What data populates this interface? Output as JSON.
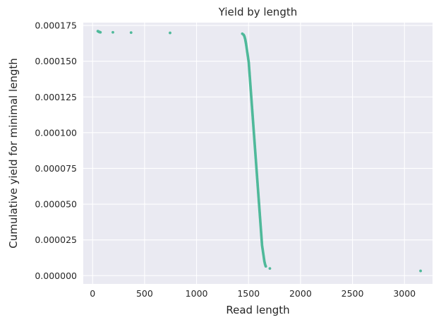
{
  "chart_data": {
    "type": "scatter",
    "title": "Yield by length",
    "xlabel": "Read length",
    "ylabel": "Cumulative yield for minimal length",
    "xlim": [
      -90,
      3270
    ],
    "ylim": [
      -5.8e-06,
      0.000177
    ],
    "xticks": [
      0,
      500,
      1000,
      1500,
      2000,
      2500,
      3000
    ],
    "xtick_labels": [
      "0",
      "500",
      "1000",
      "1500",
      "2000",
      "2500",
      "3000"
    ],
    "yticks": [
      0,
      2.5e-05,
      5e-05,
      7.5e-05,
      0.0001,
      0.000125,
      0.00015,
      0.000175
    ],
    "ytick_labels": [
      "0.000000",
      "0.000025",
      "0.000050",
      "0.000075",
      "0.000100",
      "0.000125",
      "0.000150",
      "0.000175"
    ],
    "grid": true,
    "colors": {
      "plot_background": "#eaeaf2",
      "grid": "#ffffff",
      "point": "#4fb99a"
    },
    "series": [
      {
        "points": [
          [
            50,
            0.000171
          ],
          [
            55,
            0.0001708
          ],
          [
            60,
            0.0001706
          ],
          [
            65,
            0.0001704
          ],
          [
            70,
            0.0001703
          ],
          [
            75,
            0.0001702
          ],
          [
            195,
            0.0001702
          ],
          [
            370,
            0.00017
          ],
          [
            745,
            0.0001698
          ],
          [
            1440,
            0.0001692
          ],
          [
            1452,
            0.0001685
          ],
          [
            1458,
            0.0001678
          ],
          [
            1462,
            0.000167
          ],
          [
            1465,
            0.0001662
          ],
          [
            1468,
            0.0001654
          ],
          [
            1470,
            0.0001646
          ],
          [
            1472,
            0.0001638
          ],
          [
            1474,
            0.000163
          ],
          [
            1476,
            0.0001622
          ],
          [
            1478,
            0.0001612
          ],
          [
            1480,
            0.0001602
          ],
          [
            1482,
            0.0001592
          ],
          [
            1484,
            0.0001582
          ],
          [
            1486,
            0.0001572
          ],
          [
            1488,
            0.0001562
          ],
          [
            1490,
            0.0001552
          ],
          [
            1492,
            0.0001542
          ],
          [
            1494,
            0.0001532
          ],
          [
            1496,
            0.0001522
          ],
          [
            1498,
            0.0001512
          ],
          [
            1500,
            0.0001502
          ],
          [
            1502,
            0.0001492
          ],
          [
            1503,
            0.0001482
          ],
          [
            1504,
            0.0001472
          ],
          [
            1505,
            0.0001462
          ],
          [
            1506,
            0.0001452
          ],
          [
            1507,
            0.0001442
          ],
          [
            1508,
            0.0001432
          ],
          [
            1509,
            0.0001422
          ],
          [
            1510,
            0.0001412
          ],
          [
            1511,
            0.0001402
          ],
          [
            1512,
            0.0001392
          ],
          [
            1513,
            0.0001382
          ],
          [
            1514,
            0.0001372
          ],
          [
            1515,
            0.0001362
          ],
          [
            1516,
            0.0001352
          ],
          [
            1517,
            0.0001342
          ],
          [
            1518,
            0.0001332
          ],
          [
            1519,
            0.0001322
          ],
          [
            1520,
            0.0001312
          ],
          [
            1521,
            0.0001302
          ],
          [
            1522,
            0.0001292
          ],
          [
            1523,
            0.0001282
          ],
          [
            1524,
            0.0001272
          ],
          [
            1525,
            0.0001262
          ],
          [
            1526,
            0.0001252
          ],
          [
            1527,
            0.0001242
          ],
          [
            1528,
            0.0001232
          ],
          [
            1529,
            0.0001222
          ],
          [
            1530,
            0.0001212
          ],
          [
            1531,
            0.0001202
          ],
          [
            1532,
            0.0001192
          ],
          [
            1533,
            0.0001182
          ],
          [
            1534,
            0.0001172
          ],
          [
            1535,
            0.0001162
          ],
          [
            1536,
            0.0001152
          ],
          [
            1537,
            0.0001142
          ],
          [
            1538,
            0.0001132
          ],
          [
            1539,
            0.0001122
          ],
          [
            1540,
            0.0001112
          ],
          [
            1541,
            0.0001102
          ],
          [
            1542,
            0.0001092
          ],
          [
            1543,
            0.0001082
          ],
          [
            1544,
            0.0001072
          ],
          [
            1545,
            0.0001062
          ],
          [
            1546,
            0.0001052
          ],
          [
            1547,
            0.0001042
          ],
          [
            1548,
            0.0001032
          ],
          [
            1549,
            0.0001022
          ],
          [
            1550,
            0.0001012
          ],
          [
            1551,
            0.0001002
          ],
          [
            1552,
            9.92e-05
          ],
          [
            1553,
            9.82e-05
          ],
          [
            1554,
            9.72e-05
          ],
          [
            1555,
            9.62e-05
          ],
          [
            1556,
            9.52e-05
          ],
          [
            1557,
            9.42e-05
          ],
          [
            1558,
            9.32e-05
          ],
          [
            1559,
            9.22e-05
          ],
          [
            1560,
            9.12e-05
          ],
          [
            1561,
            9.02e-05
          ],
          [
            1562,
            8.92e-05
          ],
          [
            1563,
            8.82e-05
          ],
          [
            1564,
            8.72e-05
          ],
          [
            1565,
            8.62e-05
          ],
          [
            1566,
            8.52e-05
          ],
          [
            1567,
            8.42e-05
          ],
          [
            1568,
            8.32e-05
          ],
          [
            1569,
            8.22e-05
          ],
          [
            1570,
            8.12e-05
          ],
          [
            1571,
            8.02e-05
          ],
          [
            1572,
            7.92e-05
          ],
          [
            1573,
            7.82e-05
          ],
          [
            1574,
            7.72e-05
          ],
          [
            1575,
            7.62e-05
          ],
          [
            1576,
            7.52e-05
          ],
          [
            1577,
            7.42e-05
          ],
          [
            1578,
            7.32e-05
          ],
          [
            1579,
            7.22e-05
          ],
          [
            1580,
            7.12e-05
          ],
          [
            1581,
            7.02e-05
          ],
          [
            1582,
            6.92e-05
          ],
          [
            1583,
            6.82e-05
          ],
          [
            1584,
            6.72e-05
          ],
          [
            1585,
            6.62e-05
          ],
          [
            1586,
            6.52e-05
          ],
          [
            1587,
            6.42e-05
          ],
          [
            1588,
            6.32e-05
          ],
          [
            1589,
            6.22e-05
          ],
          [
            1590,
            6.12e-05
          ],
          [
            1591,
            6.02e-05
          ],
          [
            1592,
            5.92e-05
          ],
          [
            1593,
            5.82e-05
          ],
          [
            1594,
            5.72e-05
          ],
          [
            1595,
            5.62e-05
          ],
          [
            1596,
            5.52e-05
          ],
          [
            1597,
            5.42e-05
          ],
          [
            1598,
            5.32e-05
          ],
          [
            1599,
            5.22e-05
          ],
          [
            1600,
            5.12e-05
          ],
          [
            1601,
            5.02e-05
          ],
          [
            1602,
            4.92e-05
          ],
          [
            1603,
            4.82e-05
          ],
          [
            1604,
            4.72e-05
          ],
          [
            1605,
            4.62e-05
          ],
          [
            1606,
            4.52e-05
          ],
          [
            1607,
            4.42e-05
          ],
          [
            1608,
            4.32e-05
          ],
          [
            1609,
            4.22e-05
          ],
          [
            1610,
            4.12e-05
          ],
          [
            1611,
            4.02e-05
          ],
          [
            1612,
            3.92e-05
          ],
          [
            1613,
            3.82e-05
          ],
          [
            1614,
            3.72e-05
          ],
          [
            1615,
            3.62e-05
          ],
          [
            1616,
            3.52e-05
          ],
          [
            1617,
            3.42e-05
          ],
          [
            1618,
            3.32e-05
          ],
          [
            1619,
            3.22e-05
          ],
          [
            1620,
            3.12e-05
          ],
          [
            1621,
            3.02e-05
          ],
          [
            1622,
            2.92e-05
          ],
          [
            1623,
            2.82e-05
          ],
          [
            1624,
            2.72e-05
          ],
          [
            1625,
            2.62e-05
          ],
          [
            1626,
            2.52e-05
          ],
          [
            1627,
            2.42e-05
          ],
          [
            1628,
            2.32e-05
          ],
          [
            1629,
            2.22e-05
          ],
          [
            1630,
            2.12e-05
          ],
          [
            1632,
            2.02e-05
          ],
          [
            1634,
            1.92e-05
          ],
          [
            1636,
            1.82e-05
          ],
          [
            1638,
            1.72e-05
          ],
          [
            1640,
            1.62e-05
          ],
          [
            1642,
            1.52e-05
          ],
          [
            1644,
            1.42e-05
          ],
          [
            1646,
            1.32e-05
          ],
          [
            1648,
            1.22e-05
          ],
          [
            1650,
            1.12e-05
          ],
          [
            1652,
            1.02e-05
          ],
          [
            1655,
            9.2e-06
          ],
          [
            1658,
            8.2e-06
          ],
          [
            1662,
            7.2e-06
          ],
          [
            1666,
            6.5e-06
          ],
          [
            1705,
            5e-06
          ],
          [
            3155,
            3.3e-06
          ]
        ]
      }
    ]
  }
}
